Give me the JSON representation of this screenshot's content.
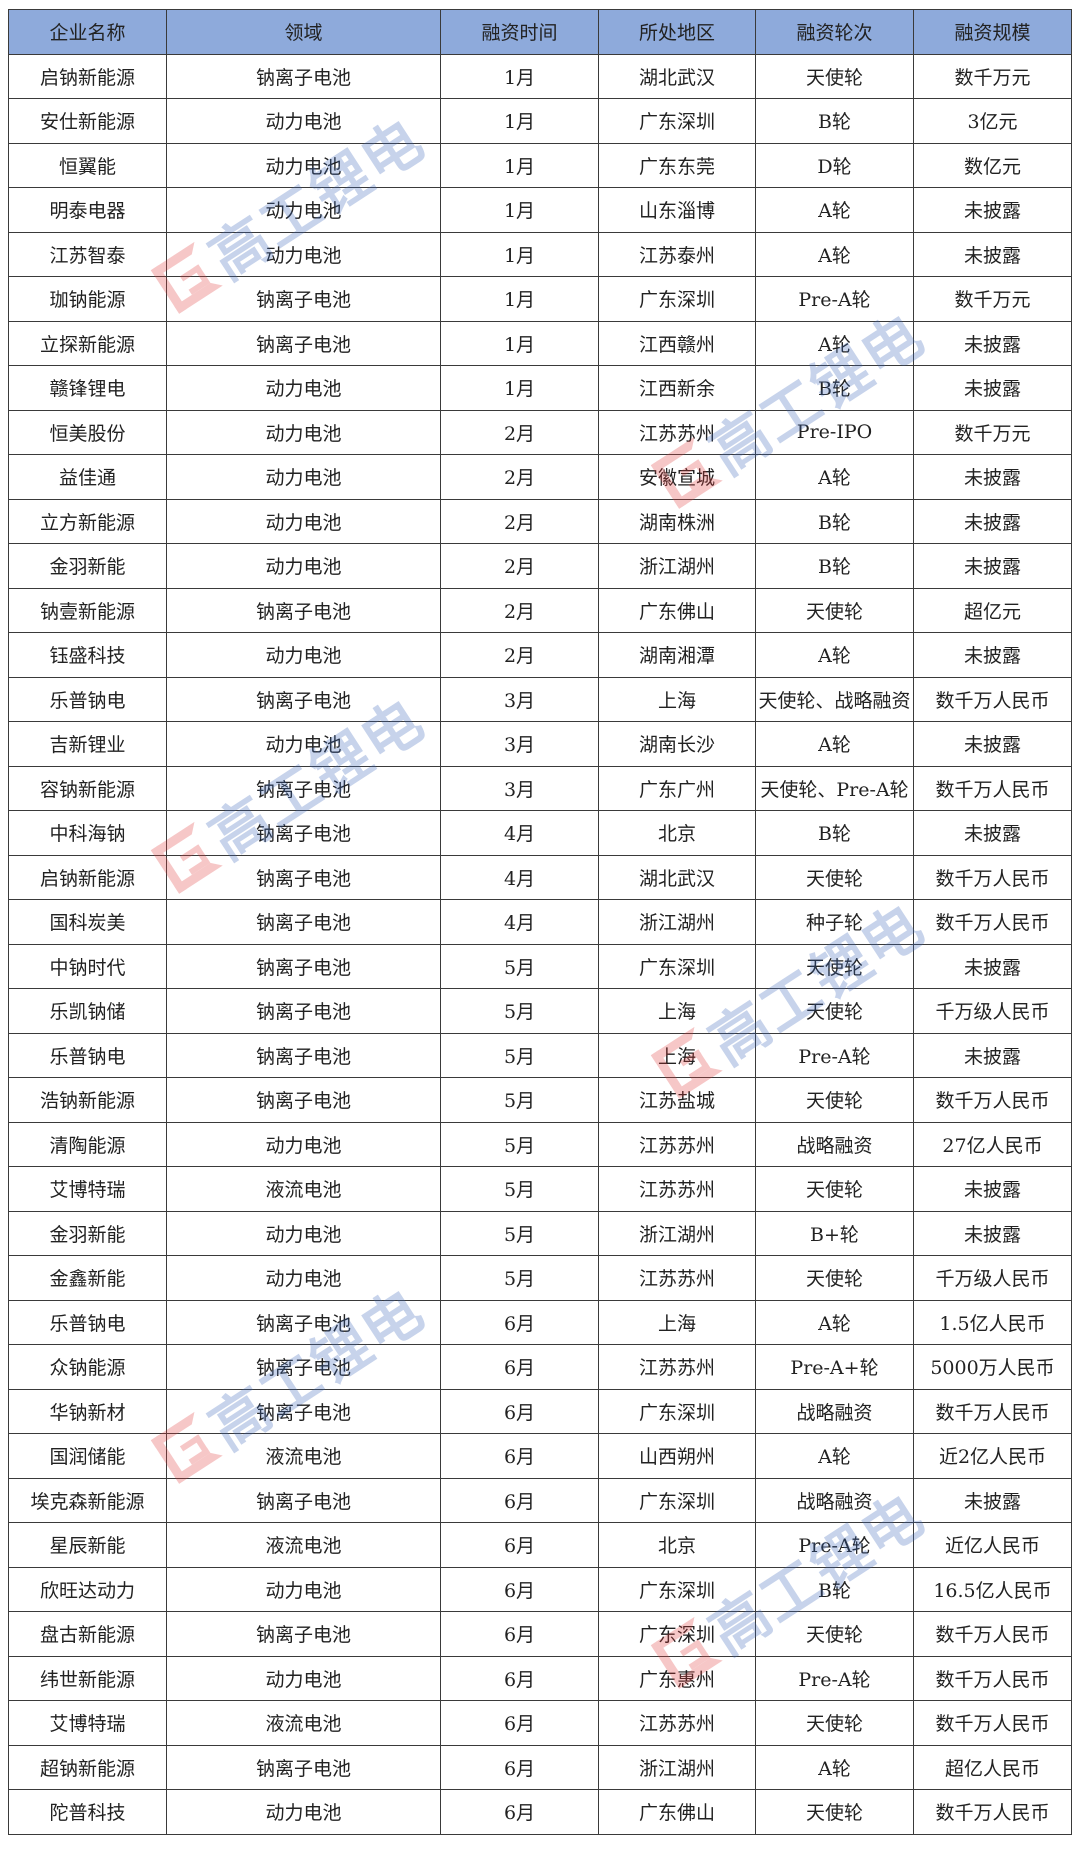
{
  "headers": [
    "企业名称",
    "领域",
    "融资时间",
    "所处地区",
    "融资轮次",
    "融资规模"
  ],
  "rows": [
    [
      "启钠新能源",
      "钠离子电池",
      "1月",
      "湖北武汉",
      "天使轮",
      "数千万元"
    ],
    [
      "安仕新能源",
      "动力电池",
      "1月",
      "广东深圳",
      "B轮",
      "3亿元"
    ],
    [
      "恒翼能",
      "动力电池",
      "1月",
      "广东东莞",
      "D轮",
      "数亿元"
    ],
    [
      "明泰电器",
      "动力电池",
      "1月",
      "山东淄博",
      "A轮",
      "未披露"
    ],
    [
      "江苏智泰",
      "动力电池",
      "1月",
      "江苏泰州",
      "A轮",
      "未披露"
    ],
    [
      "珈钠能源",
      "钠离子电池",
      "1月",
      "广东深圳",
      "Pre-A轮",
      "数千万元"
    ],
    [
      "立探新能源",
      "钠离子电池",
      "1月",
      "江西赣州",
      "A轮",
      "未披露"
    ],
    [
      "赣锋锂电",
      "动力电池",
      "1月",
      "江西新余",
      "B轮",
      "未披露"
    ],
    [
      "恒美股份",
      "动力电池",
      "2月",
      "江苏苏州",
      "Pre-IPO",
      "数千万元"
    ],
    [
      "益佳通",
      "动力电池",
      "2月",
      "安徽宣城",
      "A轮",
      "未披露"
    ],
    [
      "立方新能源",
      "动力电池",
      "2月",
      "湖南株洲",
      "B轮",
      "未披露"
    ],
    [
      "金羽新能",
      "动力电池",
      "2月",
      "浙江湖州",
      "B轮",
      "未披露"
    ],
    [
      "钠壹新能源",
      "钠离子电池",
      "2月",
      "广东佛山",
      "天使轮",
      "超亿元"
    ],
    [
      "钰盛科技",
      "动力电池",
      "2月",
      "湖南湘潭",
      "A轮",
      "未披露"
    ],
    [
      "乐普钠电",
      "钠离子电池",
      "3月",
      "上海",
      "天使轮、战略融资",
      "数千万人民币"
    ],
    [
      "吉新锂业",
      "动力电池",
      "3月",
      "湖南长沙",
      "A轮",
      "未披露"
    ],
    [
      "容钠新能源",
      "钠离子电池",
      "3月",
      "广东广州",
      "天使轮、Pre-A轮",
      "数千万人民币"
    ],
    [
      "中科海钠",
      "钠离子电池",
      "4月",
      "北京",
      "B轮",
      "未披露"
    ],
    [
      "启钠新能源",
      "钠离子电池",
      "4月",
      "湖北武汉",
      "天使轮",
      "数千万人民币"
    ],
    [
      "国科炭美",
      "钠离子电池",
      "4月",
      "浙江湖州",
      "种子轮",
      "数千万人民币"
    ],
    [
      "中钠时代",
      "钠离子电池",
      "5月",
      "广东深圳",
      "天使轮",
      "未披露"
    ],
    [
      "乐凯钠储",
      "钠离子电池",
      "5月",
      "上海",
      "天使轮",
      "千万级人民币"
    ],
    [
      "乐普钠电",
      "钠离子电池",
      "5月",
      "上海",
      "Pre-A轮",
      "未披露"
    ],
    [
      "浩钠新能源",
      "钠离子电池",
      "5月",
      "江苏盐城",
      "天使轮",
      "数千万人民币"
    ],
    [
      "清陶能源",
      "动力电池",
      "5月",
      "江苏苏州",
      "战略融资",
      "27亿人民币"
    ],
    [
      "艾博特瑞",
      "液流电池",
      "5月",
      "江苏苏州",
      "天使轮",
      "未披露"
    ],
    [
      "金羽新能",
      "动力电池",
      "5月",
      "浙江湖州",
      "B+轮",
      "未披露"
    ],
    [
      "金鑫新能",
      "动力电池",
      "5月",
      "江苏苏州",
      "天使轮",
      "千万级人民币"
    ],
    [
      "乐普钠电",
      "钠离子电池",
      "6月",
      "上海",
      "A轮",
      "1.5亿人民币"
    ],
    [
      "众钠能源",
      "钠离子电池",
      "6月",
      "江苏苏州",
      "Pre-A+轮",
      "5000万人民币"
    ],
    [
      "华钠新材",
      "钠离子电池",
      "6月",
      "广东深圳",
      "战略融资",
      "数千万人民币"
    ],
    [
      "国润储能",
      "液流电池",
      "6月",
      "山西朔州",
      "A轮",
      "近2亿人民币"
    ],
    [
      "埃克森新能源",
      "钠离子电池",
      "6月",
      "广东深圳",
      "战略融资",
      "未披露"
    ],
    [
      "星辰新能",
      "液流电池",
      "6月",
      "北京",
      "Pre-A轮",
      "近亿人民币"
    ],
    [
      "欣旺达动力",
      "动力电池",
      "6月",
      "广东深圳",
      "B轮",
      "16.5亿人民币"
    ],
    [
      "盘古新能源",
      "钠离子电池",
      "6月",
      "广东深圳",
      "天使轮",
      "数千万人民币"
    ],
    [
      "纬世新能源",
      "动力电池",
      "6月",
      "广东惠州",
      "Pre-A轮",
      "数千万人民币"
    ],
    [
      "艾博特瑞",
      "液流电池",
      "6月",
      "江苏苏州",
      "天使轮",
      "数千万人民币"
    ],
    [
      "超钠新能源",
      "钠离子电池",
      "6月",
      "浙江湖州",
      "A轮",
      "超亿人民币"
    ],
    [
      "陀普科技",
      "动力电池",
      "6月",
      "广东佛山",
      "天使轮",
      "数千万人民币"
    ]
  ],
  "watermark": {
    "text": "高工锂电",
    "colors": {
      "logo": "#e03a3a",
      "text": "#3a66b8"
    }
  },
  "colors": {
    "header_bg": "#8eaadb",
    "border": "#3a3a3a"
  }
}
